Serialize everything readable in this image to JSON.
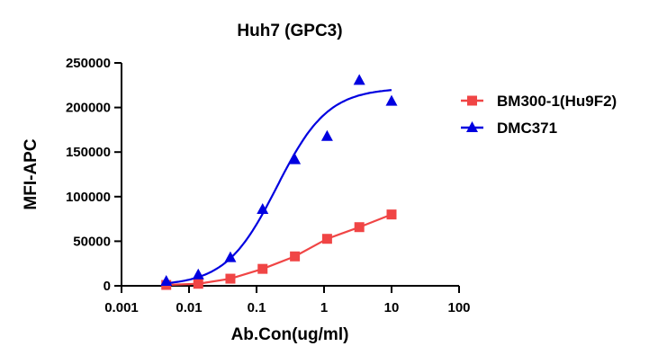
{
  "chart_data": {
    "type": "scatter",
    "title": "Huh7 (GPC3)",
    "xlabel": "Ab.Con(ug/ml)",
    "ylabel": "MFI-APC",
    "xscale": "log",
    "xlim": [
      0.001,
      100
    ],
    "ylim": [
      0,
      250000
    ],
    "xticks": [
      "0.001",
      "0.01",
      "0.1",
      "1",
      "10",
      "100"
    ],
    "yticks": [
      "0",
      "50000",
      "100000",
      "150000",
      "200000",
      "250000"
    ],
    "grid": false,
    "legend_position": "right",
    "series": [
      {
        "name": "BM300-1(Hu9F2)",
        "color": "#f04545",
        "marker": "square",
        "line": "connected",
        "x": [
          0.0046,
          0.0137,
          0.041,
          0.123,
          0.37,
          1.11,
          3.33,
          10
        ],
        "y": [
          1000,
          2300,
          8000,
          19000,
          33000,
          52700,
          65800,
          80000
        ]
      },
      {
        "name": "DMC371",
        "color": "#0000e0",
        "marker": "triangle",
        "line": "sigmoidal fit",
        "x": [
          0.0046,
          0.0137,
          0.041,
          0.123,
          0.37,
          1.11,
          3.33,
          10
        ],
        "y": [
          5000,
          12400,
          31600,
          85700,
          141500,
          167600,
          230500,
          207000
        ]
      }
    ]
  }
}
